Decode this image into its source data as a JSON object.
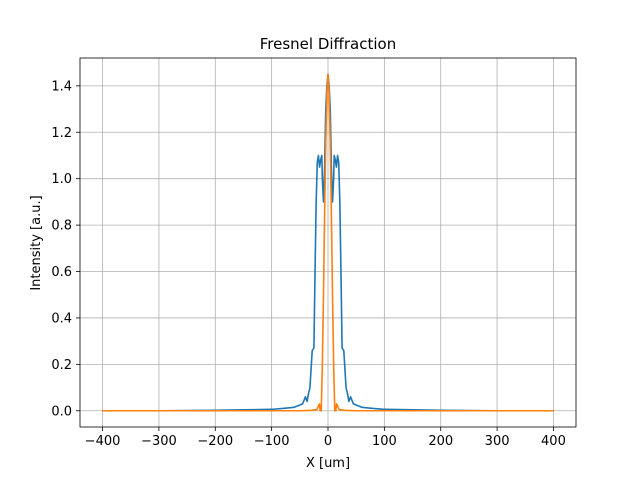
{
  "chart_data": {
    "type": "line",
    "title": "Fresnel Diffraction",
    "xlabel": "X [um]",
    "ylabel": "Intensity [a.u.]",
    "xlim": [
      -440,
      440
    ],
    "ylim": [
      -0.07,
      1.52
    ],
    "xticks": [
      -400,
      -300,
      -200,
      -100,
      0,
      100,
      200,
      300,
      400
    ],
    "yticks": [
      0.0,
      0.2,
      0.4,
      0.6,
      0.8,
      1.0,
      1.2,
      1.4
    ],
    "xtick_labels": [
      "−400",
      "−300",
      "−200",
      "−100",
      "0",
      "100",
      "200",
      "300",
      "400"
    ],
    "ytick_labels": [
      "0.0",
      "0.2",
      "0.4",
      "0.6",
      "0.8",
      "1.0",
      "1.2",
      "1.4"
    ],
    "grid": true,
    "series": [
      {
        "color": "#1f77b4",
        "x": [
          -400,
          -300,
          -200,
          -150,
          -100,
          -80,
          -60,
          -50,
          -45,
          -40,
          -37,
          -35,
          -32,
          -30,
          -28,
          -25,
          -23,
          -21,
          -19,
          -17,
          -15,
          -13,
          -11,
          -10,
          -8,
          -6,
          -4,
          -2,
          0,
          2,
          4,
          6,
          8,
          10,
          11,
          13,
          15,
          17,
          19,
          21,
          23,
          25,
          28,
          30,
          32,
          35,
          37,
          40,
          45,
          50,
          60,
          80,
          100,
          150,
          200,
          300,
          400
        ],
        "y": [
          0.0,
          0.0,
          0.002,
          0.004,
          0.006,
          0.01,
          0.015,
          0.025,
          0.03,
          0.06,
          0.04,
          0.07,
          0.1,
          0.18,
          0.26,
          0.27,
          0.6,
          0.9,
          1.07,
          1.1,
          1.05,
          1.08,
          1.1,
          1.0,
          0.9,
          1.05,
          1.3,
          1.4,
          1.45,
          1.4,
          1.3,
          1.05,
          0.9,
          1.0,
          1.1,
          1.08,
          1.05,
          1.1,
          1.07,
          0.9,
          0.6,
          0.27,
          0.26,
          0.18,
          0.1,
          0.07,
          0.04,
          0.06,
          0.03,
          0.025,
          0.015,
          0.01,
          0.006,
          0.004,
          0.002,
          0.0,
          0.0
        ]
      },
      {
        "color": "#ff7f0e",
        "x": [
          -400,
          -100,
          -50,
          -30,
          -20,
          -17,
          -15,
          -14,
          -12,
          -10,
          -8,
          -6,
          -4,
          -2,
          0,
          2,
          4,
          6,
          8,
          10,
          12,
          14,
          15,
          17,
          20,
          30,
          50,
          100,
          400
        ],
        "y": [
          0.0,
          0.0,
          0.0,
          0.002,
          0.005,
          0.02,
          0.03,
          0.0,
          0.0,
          0.2,
          0.5,
          0.85,
          1.15,
          1.37,
          1.45,
          1.37,
          1.15,
          0.85,
          0.5,
          0.2,
          0.0,
          0.0,
          0.03,
          0.02,
          0.005,
          0.002,
          0.0,
          0.0,
          0.0
        ]
      }
    ]
  }
}
